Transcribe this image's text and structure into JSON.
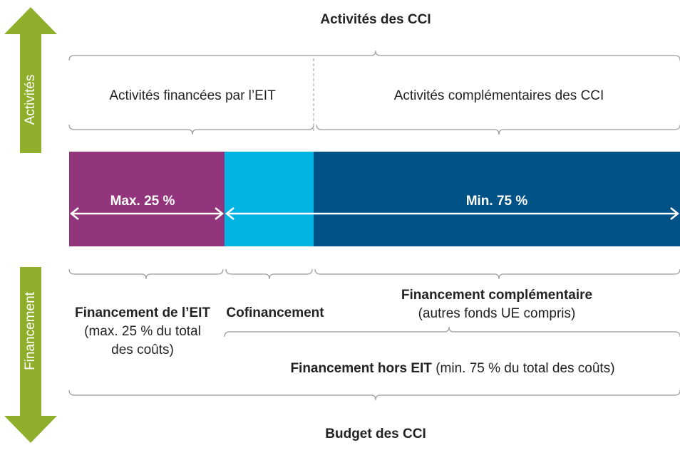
{
  "top_title": "Activités des CCI",
  "side_labels": {
    "top": "Activités",
    "bottom": "Financement"
  },
  "activities": {
    "funded": "Activités financées par l’EIT",
    "complementary": "Activités complémentaires des CCI"
  },
  "bar": {
    "left_label": "Max. 25 %",
    "right_label": "Min. 75 %"
  },
  "funding": {
    "eit": {
      "title": "Financement de l’EIT",
      "lines": [
        "(max. 25 % du total",
        "des coûts)"
      ]
    },
    "cofinancing": {
      "title": "Cofinancement"
    },
    "complementary": {
      "title": "Financement complémentaire",
      "note": "(autres fonds UE compris)"
    },
    "non_eit": {
      "title": "Financement hors EIT",
      "note": " (min. 75 % du total des coûts)"
    }
  },
  "bottom_title": "Budget des CCI"
}
